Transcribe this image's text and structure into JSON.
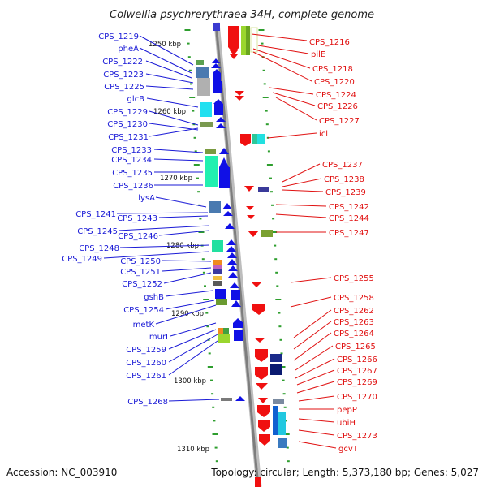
{
  "title": "Colwellia psychrerythraea 34H, complete genome",
  "footer": {
    "accession": "Accession: NC_003910",
    "summary": "Topology: circular; Length: 5,373,180 bp; Genes: 5,027"
  },
  "colors": {
    "left_label": "#1a1ad6",
    "right_label": "#e01010",
    "forward_gene": "#1010e6",
    "reverse_gene": "#f01010",
    "dna_backbone": "#8c8c8c",
    "tick": "#2e9e2e"
  },
  "kbp_markers": [
    "1250 kbp",
    "1260 kbp",
    "1270 kbp",
    "1280 kbp",
    "1290 kbp",
    "1300 kbp",
    "1310 kbp"
  ],
  "left_labels": [
    "CPS_1219",
    "pheA",
    "CPS_1222",
    "CPS_1223",
    "CPS_1225",
    "glcB",
    "CPS_1229",
    "CPS_1230",
    "CPS_1231",
    "CPS_1233",
    "CPS_1234",
    "CPS_1235",
    "CPS_1236",
    "lysA",
    "CPS_1241",
    "CPS_1243",
    "CPS_1245",
    "CPS_1246",
    "CPS_1248",
    "CPS_1249",
    "CPS_1250",
    "CPS_1251",
    "CPS_1252",
    "gshB",
    "CPS_1254",
    "metK",
    "murI",
    "CPS_1259",
    "CPS_1260",
    "CPS_1261",
    "CPS_1268"
  ],
  "right_labels": [
    "CPS_1216",
    "pilE",
    "CPS_1218",
    "CPS_1220",
    "CPS_1224",
    "CPS_1226",
    "CPS_1227",
    "icl",
    "CPS_1237",
    "CPS_1238",
    "CPS_1239",
    "CPS_1242",
    "CPS_1244",
    "CPS_1247",
    "CPS_1255",
    "CPS_1258",
    "CPS_1262",
    "CPS_1263",
    "CPS_1264",
    "CPS_1265",
    "CPS_1266",
    "CPS_1267",
    "CPS_1269",
    "CPS_1270",
    "pepP",
    "ubiH",
    "CPS_1273",
    "gcvT"
  ]
}
